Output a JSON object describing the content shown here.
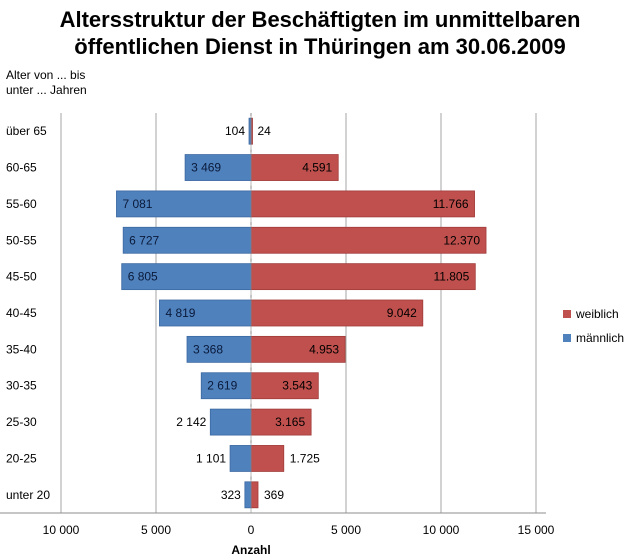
{
  "chart_data": {
    "type": "bar",
    "orientation": "horizontal",
    "stacked_pyramid": true,
    "title_line1": "Altersstruktur der Beschäftigten im unmittelbaren",
    "title_line2": "öffentlichen Dienst in Thüringen am 30.06.2009",
    "ylabel_line1": "Alter von  ... bis",
    "ylabel_line2": "unter ... Jahren",
    "xlabel": "Anzahl",
    "categories": [
      "über 65",
      "60-65",
      "55-60",
      "50-55",
      "45-50",
      "40-45",
      "35-40",
      "30-35",
      "25-30",
      "20-25",
      "unter 20"
    ],
    "series": [
      {
        "name": "weiblich",
        "color": "#c0504d",
        "values": [
          24,
          4591,
          11766,
          12370,
          11805,
          9042,
          4953,
          3543,
          3165,
          1725,
          369
        ],
        "labels": [
          "24",
          "4.591",
          "11.766",
          "12.370",
          "11.805",
          "9.042",
          "4.953",
          "3.543",
          "3.165",
          "1.725",
          "369"
        ]
      },
      {
        "name": "männlich",
        "color": "#4f81bd",
        "values": [
          -104,
          -3469,
          -7081,
          -6727,
          -6805,
          -4819,
          -3368,
          -2619,
          -2142,
          -1101,
          -323
        ],
        "labels": [
          "104",
          "3 469",
          "7 081",
          "6 727",
          "6 805",
          "4 819",
          "3 368",
          "2 619",
          "2 142",
          "1 101",
          "323"
        ]
      }
    ],
    "xlim": [
      -10000,
      15000
    ],
    "xticks": [
      -10000,
      -5000,
      0,
      5000,
      10000,
      15000
    ],
    "xtick_labels": [
      "10 000",
      "5 000",
      "0",
      "5 000",
      "10 000",
      "15 000"
    ],
    "grid": "vertical",
    "legend": "right"
  }
}
